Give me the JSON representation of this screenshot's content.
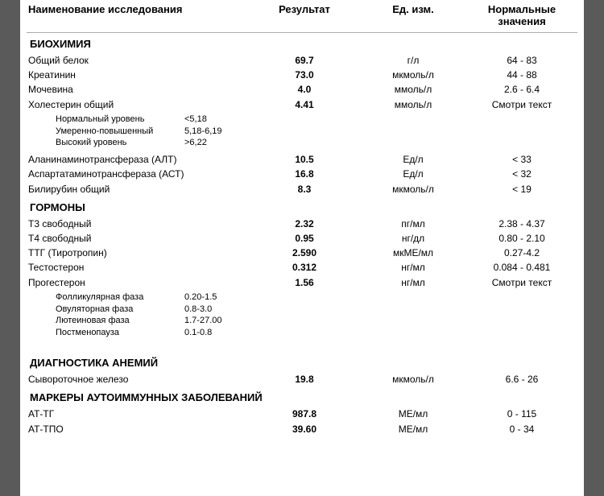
{
  "headers": {
    "name": "Наименование исследования",
    "result": "Результат",
    "unit": "Ед. изм.",
    "normal": "Нормальные значения"
  },
  "sections": [
    {
      "title": "БИОХИМИЯ",
      "rows": [
        {
          "name": "Общий белок",
          "result": "69.7",
          "unit": "г/л",
          "normal": "64 - 83"
        },
        {
          "name": "Креатинин",
          "result": "73.0",
          "unit": "мкмоль/л",
          "normal": "44 - 88"
        },
        {
          "name": "Мочевина",
          "result": "4.0",
          "unit": "ммоль/л",
          "normal": "2.6 - 6.4"
        },
        {
          "name": "Холестерин общий",
          "result": "4.41",
          "unit": "ммоль/л",
          "normal": "Смотри текст"
        }
      ],
      "note": [
        {
          "label": "Нормальный уровень",
          "val": "<5,18"
        },
        {
          "label": "Умеренно-повышенный",
          "val": "5,18-6,19"
        },
        {
          "label": "Высокий уровень",
          "val": ">6,22"
        }
      ],
      "rows2": [
        {
          "name": "Аланинаминотрансфераза (АЛТ)",
          "result": "10.5",
          "unit": "Ед/л",
          "normal": "< 33"
        },
        {
          "name": "Аспартатаминотрансфераза (АСТ)",
          "result": "16.8",
          "unit": "Ед/л",
          "normal": "< 32"
        },
        {
          "name": "Билирубин общий",
          "result": "8.3",
          "unit": "мкмоль/л",
          "normal": "< 19"
        }
      ]
    },
    {
      "title": "ГОРМОНЫ",
      "rows": [
        {
          "name": "Т3 свободный",
          "result": "2.32",
          "unit": "пг/мл",
          "normal": "2.38 - 4.37"
        },
        {
          "name": "Т4 свободный",
          "result": "0.95",
          "unit": "нг/дл",
          "normal": "0.80 - 2.10"
        },
        {
          "name": "ТТГ (Тиротропин)",
          "result": "2.590",
          "unit": "мкМЕ/мл",
          "normal": "0.27-4.2"
        },
        {
          "name": "Тестостерон",
          "result": "0.312",
          "unit": "нг/мл",
          "normal": "0.084 - 0.481"
        },
        {
          "name": "Прогестерон",
          "result": "1.56",
          "unit": "нг/мл",
          "normal": "Смотри текст"
        }
      ],
      "note": [
        {
          "label": "Фолликулярная фаза",
          "val": "0.20-1.5"
        },
        {
          "label": "Овуляторная фаза",
          "val": "0.8-3.0"
        },
        {
          "label": "Лютеиновая фаза",
          "val": "1.7-27.00"
        },
        {
          "label": "Постменопауза",
          "val": "0.1-0.8"
        }
      ],
      "rows2": []
    },
    {
      "title": "ДИАГНОСТИКА АНЕМИЙ",
      "rows": [
        {
          "name": "Сывороточное железо",
          "result": "19.8",
          "unit": "мкмоль/л",
          "normal": "6.6 - 26"
        }
      ],
      "note": [],
      "rows2": []
    },
    {
      "title": "МАРКЕРЫ АУТОИММУННЫХ ЗАБОЛЕВАНИЙ",
      "rows": [
        {
          "name": "АТ-ТГ",
          "result": "987.8",
          "unit": "МЕ/мл",
          "normal": "0 - 115"
        },
        {
          "name": "АТ-ТПО",
          "result": "39.60",
          "unit": "МЕ/мл",
          "normal": "0 - 34"
        }
      ],
      "note": [],
      "rows2": []
    }
  ]
}
